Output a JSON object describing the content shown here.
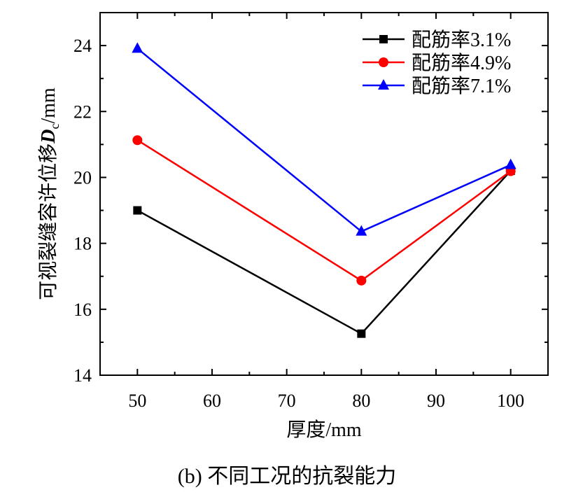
{
  "chart_data": {
    "type": "line",
    "title": "",
    "caption": "(b)  不同工况的抗裂能力",
    "xlabel": "厚度/mm",
    "ylabel": "可视裂缝容许位移",
    "ylabel_symbol": "D",
    "ylabel_subscript": "c",
    "ylabel_unit": "/mm",
    "xlim": [
      45,
      105
    ],
    "ylim": [
      14,
      25
    ],
    "xticks": [
      50,
      60,
      70,
      80,
      90,
      100
    ],
    "yticks": [
      14,
      16,
      18,
      20,
      22,
      24
    ],
    "legend_position": "top-right",
    "x": [
      50,
      80,
      100
    ],
    "series": [
      {
        "name": "配筋率3.1%",
        "values": [
          19.0,
          15.26,
          20.2
        ],
        "color": "#000000",
        "marker": "square"
      },
      {
        "name": "配筋率4.9%",
        "values": [
          21.13,
          16.87,
          20.19
        ],
        "color": "#ff0000",
        "marker": "circle"
      },
      {
        "name": "配筋率7.1%",
        "values": [
          23.91,
          18.36,
          20.38
        ],
        "color": "#0000ff",
        "marker": "triangle"
      }
    ]
  }
}
